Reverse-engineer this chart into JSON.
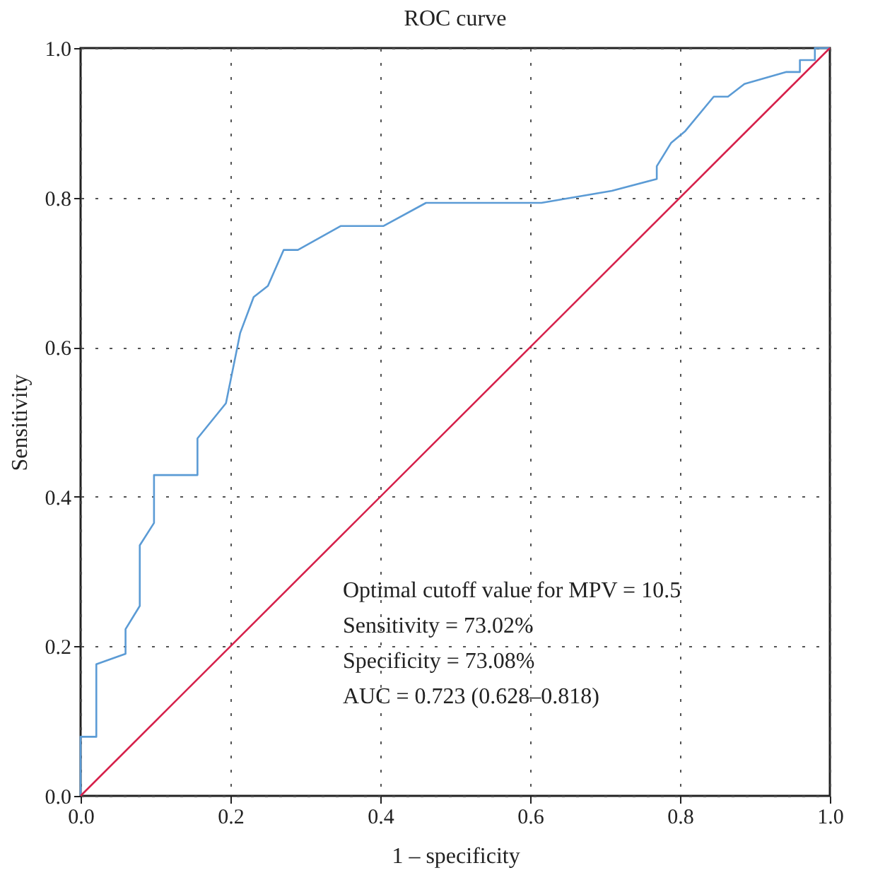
{
  "chart_data": {
    "type": "line",
    "title": "ROC curve",
    "xlabel": "1 – specificity",
    "ylabel": "Sensitivity",
    "series": [
      {
        "color": "#5b9bd5",
        "x": [
          0,
          0,
          0.021,
          0.021,
          0.06,
          0.06,
          0.079,
          0.079,
          0.098,
          0.098,
          0.156,
          0.156,
          0.194,
          0.209,
          0.213,
          0.231,
          0.25,
          0.271,
          0.29,
          0.347,
          0.404,
          0.461,
          0.615,
          0.709,
          0.769,
          0.769,
          0.788,
          0.807,
          0.845,
          0.864,
          0.886,
          0.942,
          0.96,
          0.96,
          0.98,
          0.98,
          1.0
        ],
        "values": [
          0,
          0.079,
          0.079,
          0.176,
          0.19,
          0.223,
          0.254,
          0.335,
          0.365,
          0.429,
          0.429,
          0.478,
          0.525,
          0.599,
          0.619,
          0.667,
          0.682,
          0.73,
          0.73,
          0.762,
          0.762,
          0.793,
          0.793,
          0.809,
          0.825,
          0.842,
          0.873,
          0.889,
          0.935,
          0.935,
          0.952,
          0.968,
          0.968,
          0.984,
          0.984,
          1.0,
          1.0
        ]
      },
      {
        "color": "#d6204a",
        "x": [
          0,
          1
        ],
        "values": [
          0,
          1
        ]
      }
    ],
    "xlim": [
      0,
      1
    ],
    "ylim": [
      0,
      1
    ],
    "xticks": [
      {
        "value": 0,
        "label": "0.0"
      },
      0.2,
      0.4,
      0.6,
      0.8,
      {
        "value": 1,
        "label": "1.0"
      }
    ],
    "yticks": [
      {
        "value": 0,
        "label": "0.0"
      },
      0.2,
      0.4,
      0.6,
      0.8,
      {
        "value": 1,
        "label": "1.0"
      }
    ],
    "grid": true,
    "line_style": "solid",
    "marker": "none",
    "annotations": [
      "Optimal cutoff value for MPV = 10.5",
      "Sensitivity = 73.02%",
      "Specificity = 73.08%",
      "AUC = 0.723 (0.628–0.818)"
    ]
  }
}
